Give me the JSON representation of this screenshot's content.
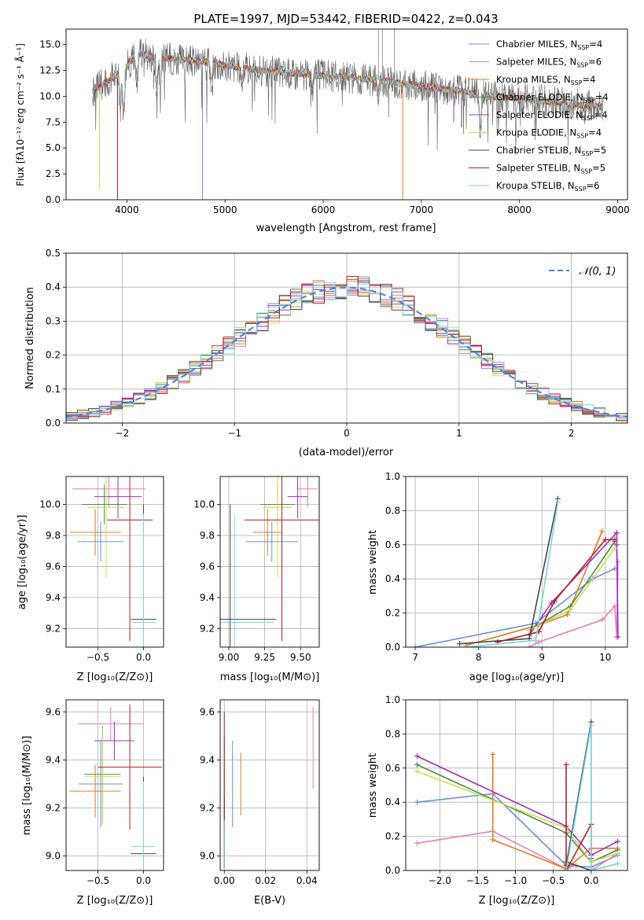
{
  "title": "PLATE=1997, MJD=53442, FIBERID=0422, z=0.043",
  "colors": [
    "#6a8fe0",
    "#e97fb5",
    "#e07b24",
    "#4f8a4f",
    "#a02cc4",
    "#c8e04a",
    "#4a4a4a",
    "#b51d1d",
    "#7dd3de"
  ],
  "legend_spectrum": [
    {
      "name": "Chabrier MILES, N",
      "sub": "SSP",
      "val": "=4"
    },
    {
      "name": "Salpeter MILES, N",
      "sub": "SSP",
      "val": "=6"
    },
    {
      "name": "Kroupa MILES, N",
      "sub": "SSP",
      "val": "=4"
    },
    {
      "name": "Chabrier ELODIE, N",
      "sub": "SSP",
      "val": "=4"
    },
    {
      "name": "Salpeter ELODIE, N",
      "sub": "SSP",
      "val": "=4"
    },
    {
      "name": "Kroupa ELODIE, N",
      "sub": "SSP",
      "val": "=4"
    },
    {
      "name": "Chabrier STELIB, N",
      "sub": "SSP",
      "val": "=5"
    },
    {
      "name": "Salpeter STELIB, N",
      "sub": "SSP",
      "val": "=5"
    },
    {
      "name": "Kroupa STELIB, N",
      "sub": "SSP",
      "val": "=6"
    }
  ],
  "legend_hist": "𝒩(0, 1)",
  "chart_data": [
    {
      "id": "spectrum",
      "type": "line",
      "xlabel": "wavelength [Angstrom, rest frame]",
      "ylabel": "Flux [fλ10⁻¹⁷ erg cm⁻² s⁻¹ Å⁻¹]",
      "xlim": [
        3380,
        9100
      ],
      "ylim": [
        0,
        16.5
      ],
      "xticks": [
        4000,
        5000,
        6000,
        7000,
        8000,
        9000
      ],
      "yticks": [
        0.0,
        2.5,
        5.0,
        7.5,
        10.0,
        12.5,
        15.0
      ],
      "grid": false,
      "legend_position": "upper right",
      "continuum": {
        "x": [
          3650,
          3800,
          3950,
          4100,
          4300,
          4500,
          4800,
          5000,
          5300,
          5600,
          6000,
          6300,
          6600,
          7000,
          7400,
          7700,
          8000,
          8300,
          8600,
          8850
        ],
        "y": [
          10.5,
          11.5,
          12.5,
          14.2,
          13.8,
          13.6,
          13.3,
          13.0,
          12.6,
          12.3,
          12.0,
          11.8,
          11.5,
          11.0,
          10.5,
          10.0,
          9.8,
          9.5,
          9.2,
          9.0
        ]
      },
      "absorption_features": [
        [
          3934,
          9.0
        ],
        [
          3969,
          8.5
        ],
        [
          4102,
          11.0
        ],
        [
          4304,
          10.5
        ],
        [
          4341,
          11.0
        ],
        [
          4861,
          11.5
        ],
        [
          5175,
          11.5
        ],
        [
          5890,
          11.0
        ],
        [
          6563,
          10.0
        ],
        [
          7600,
          7.0
        ],
        [
          8500,
          8.8
        ],
        [
          8542,
          8.5
        ],
        [
          8662,
          8.7
        ]
      ],
      "spikes": [
        [
          3720,
          1.0
        ],
        [
          3905,
          0.0
        ],
        [
          4770,
          0.0
        ],
        [
          6810,
          0.0
        ],
        [
          7330,
          7.5
        ],
        [
          7410,
          7.0
        ]
      ],
      "emission_spikes": [
        [
          6563,
          16.5
        ],
        [
          6603,
          16.5
        ],
        [
          6725,
          16.5
        ]
      ]
    },
    {
      "id": "residual-histogram",
      "type": "histogram",
      "xlabel": "(data-model)/error",
      "ylabel": "Normed distribution",
      "xlim": [
        -2.5,
        2.5
      ],
      "ylim": [
        0,
        0.5
      ],
      "xticks": [
        -2,
        -1,
        0,
        1,
        2
      ],
      "yticks": [
        0.0,
        0.1,
        0.2,
        0.3,
        0.4,
        0.5
      ],
      "grid": true,
      "legend_position": "upper right",
      "bin_width": 0.1,
      "x_start": -2.5
    },
    {
      "id": "age-vs-Z",
      "type": "errorbar",
      "xlabel": "Z [log₁₀(Z/Z⊙)]",
      "ylabel": "age  [log₁₀(age/yr)]",
      "xlim": [
        -0.85,
        0.22
      ],
      "ylim": [
        9.08,
        10.18
      ],
      "xticks": [
        -0.5,
        0.0
      ],
      "yticks": [
        9.2,
        9.4,
        9.6,
        9.8,
        10.0
      ],
      "grid": true,
      "points": [
        {
          "x": -0.47,
          "y": 9.76,
          "xerr": 0.25,
          "yerr": 0.13
        },
        {
          "x": -0.38,
          "y": 10.1,
          "xerr": 0.4,
          "yerr": 0.12
        },
        {
          "x": -0.53,
          "y": 9.82,
          "xerr": 0.28,
          "yerr": 0.15
        },
        {
          "x": -0.43,
          "y": 10.0,
          "xerr": 0.25,
          "yerr": 0.13
        },
        {
          "x": -0.28,
          "y": 10.05,
          "xerr": 0.26,
          "yerr": 0.14
        },
        {
          "x": -0.41,
          "y": 9.98,
          "xerr": 0.2,
          "yerr": 0.45
        },
        {
          "x": 0.0,
          "y": 9.26,
          "xerr": 0.14,
          "yerr": 0.74
        },
        {
          "x": -0.15,
          "y": 9.9,
          "xerr": 0.25,
          "yerr": 0.78
        },
        {
          "x": 0.0,
          "y": 9.24,
          "xerr": 0.13,
          "yerr": 0.7
        }
      ]
    },
    {
      "id": "age-vs-mass",
      "type": "errorbar",
      "xlabel": "mass [log₁₀(M/M⊙)]",
      "ylabel": "",
      "xlim": [
        8.94,
        9.63
      ],
      "ylim": [
        9.08,
        10.18
      ],
      "xticks": [
        9.0,
        9.25,
        9.5
      ],
      "yticks": [
        9.2,
        9.4,
        9.6,
        9.8,
        10.0
      ],
      "grid": true,
      "points": [
        {
          "x": 9.3,
          "y": 9.76,
          "xerr": 0.18,
          "yerr": 0.13
        },
        {
          "x": 9.55,
          "y": 10.1,
          "xerr": 0.07,
          "yerr": 0.12
        },
        {
          "x": 9.27,
          "y": 9.82,
          "xerr": 0.1,
          "yerr": 0.15
        },
        {
          "x": 9.34,
          "y": 10.0,
          "xerr": 0.12,
          "yerr": 0.13
        },
        {
          "x": 9.48,
          "y": 10.05,
          "xerr": 0.07,
          "yerr": 0.14
        },
        {
          "x": 9.34,
          "y": 9.98,
          "xerr": 0.1,
          "yerr": 0.45
        },
        {
          "x": 9.01,
          "y": 9.26,
          "xerr": 0.32,
          "yerr": 0.74
        },
        {
          "x": 9.37,
          "y": 9.9,
          "xerr": 0.26,
          "yerr": 0.78
        },
        {
          "x": 9.04,
          "y": 9.24,
          "xerr": 0.27,
          "yerr": 0.7
        }
      ]
    },
    {
      "id": "mass-weight-vs-age",
      "type": "line",
      "xlabel": "age  [log₁₀(age/yr)]",
      "ylabel": "mass weight",
      "xlim": [
        6.85,
        10.35
      ],
      "ylim": [
        0,
        1.0
      ],
      "xticks": [
        7,
        8,
        9,
        10
      ],
      "yticks": [
        0.0,
        0.2,
        0.4,
        0.6,
        0.8,
        1.0
      ],
      "grid": true,
      "series": [
        {
          "x": [
            7.0,
            8.9,
            9.8,
            10.15
          ],
          "y": [
            0.0,
            0.14,
            0.4,
            0.46
          ]
        },
        {
          "x": [
            8.8,
            8.95,
            9.95,
            10.15,
            10.18,
            10.2
          ],
          "y": [
            0.0,
            0.03,
            0.16,
            0.24,
            0.06,
            0.5
          ]
        },
        {
          "x": [
            7.8,
            8.95,
            9.4,
            9.95
          ],
          "y": [
            0.01,
            0.13,
            0.19,
            0.68
          ]
        },
        {
          "x": [
            8.8,
            9.45,
            10.15
          ],
          "y": [
            0.1,
            0.24,
            0.62
          ]
        },
        {
          "x": [
            8.8,
            9.15,
            10.18,
            10.2,
            10.18
          ],
          "y": [
            0.07,
            0.26,
            0.67,
            0.06,
            0.6
          ]
        },
        {
          "x": [
            8.8,
            9.45,
            10.15
          ],
          "y": [
            0.1,
            0.22,
            0.58
          ]
        },
        {
          "x": [
            7.7,
            8.8,
            9.25
          ],
          "y": [
            0.02,
            0.05,
            0.87
          ]
        },
        {
          "x": [
            8.3,
            8.95,
            9.2,
            10.0,
            10.15
          ],
          "y": [
            0.03,
            0.09,
            0.27,
            0.63,
            0.63
          ]
        },
        {
          "x": [
            7.8,
            8.9,
            9.25
          ],
          "y": [
            0.0,
            0.04,
            0.85
          ]
        }
      ]
    },
    {
      "id": "mass-vs-Z",
      "type": "errorbar",
      "xlabel": "Z [log₁₀(Z/Z⊙)]",
      "ylabel": "mass [log₁₀(M/M⊙)]",
      "xlim": [
        -0.85,
        0.22
      ],
      "ylim": [
        8.94,
        9.65
      ],
      "xticks": [
        -0.5,
        0.0
      ],
      "yticks": [
        9.0,
        9.2,
        9.4,
        9.6
      ],
      "grid": true,
      "points": [
        {
          "x": -0.47,
          "y": 9.3,
          "xerr": 0.24,
          "yerr": 0.18
        },
        {
          "x": -0.36,
          "y": 9.55,
          "xerr": 0.36,
          "yerr": 0.07
        },
        {
          "x": -0.53,
          "y": 9.27,
          "xerr": 0.28,
          "yerr": 0.11
        },
        {
          "x": -0.45,
          "y": 9.34,
          "xerr": 0.2,
          "yerr": 0.2
        },
        {
          "x": -0.32,
          "y": 9.48,
          "xerr": 0.22,
          "yerr": 0.08
        },
        {
          "x": -0.45,
          "y": 9.33,
          "xerr": 0.2,
          "yerr": 0.2
        },
        {
          "x": 0.0,
          "y": 9.01,
          "xerr": 0.14,
          "yerr": 0.32
        },
        {
          "x": -0.15,
          "y": 9.37,
          "xerr": 0.35,
          "yerr": 0.26
        },
        {
          "x": 0.0,
          "y": 9.04,
          "xerr": 0.13,
          "yerr": 0.27
        }
      ]
    },
    {
      "id": "mass-vs-ebv",
      "type": "errorbar",
      "xlabel": "E(B-V)",
      "ylabel": "",
      "xlim": [
        -0.002,
        0.046
      ],
      "ylim": [
        8.94,
        9.65
      ],
      "xticks": [
        0.0,
        0.02,
        0.04
      ],
      "yticks": [
        9.0,
        9.2,
        9.4,
        9.6
      ],
      "grid": true,
      "points": [
        {
          "x": 0.004,
          "y": 9.3,
          "xerr": 0,
          "yerr": 0.18
        },
        {
          "x": 0.043,
          "y": 9.45,
          "xerr": 0,
          "yerr": 0.17
        },
        {
          "x": 0.008,
          "y": 9.3,
          "xerr": 0,
          "yerr": 0.13
        },
        {
          "x": 0.0,
          "y": 9.2,
          "xerr": 0,
          "yerr": 0.25
        },
        {
          "x": 0.0,
          "y": 9.3,
          "xerr": 0,
          "yerr": 0.2
        },
        {
          "x": 0.0,
          "y": 9.25,
          "xerr": 0,
          "yerr": 0.2
        },
        {
          "x": 0.0,
          "y": 9.1,
          "xerr": 0,
          "yerr": 0.15
        },
        {
          "x": 0.0,
          "y": 9.3,
          "xerr": 0,
          "yerr": 0.3
        },
        {
          "x": 0.0,
          "y": 9.05,
          "xerr": 0,
          "yerr": 0.1
        }
      ]
    },
    {
      "id": "mass-weight-vs-Z",
      "type": "line",
      "xlabel": "Z [log₁₀(Z/Z⊙)]",
      "ylabel": "mass weight",
      "xlim": [
        -2.45,
        0.48
      ],
      "ylim": [
        0,
        1.0
      ],
      "xticks": [
        -2.0,
        -1.5,
        -1.0,
        -0.5,
        0.0
      ],
      "yticks": [
        0.0,
        0.2,
        0.4,
        0.6,
        0.8,
        1.0
      ],
      "grid": true,
      "series": [
        {
          "x": [
            -2.3,
            -1.3,
            -0.33,
            0.0,
            0.35
          ],
          "y": [
            0.4,
            0.45,
            0.03,
            0.02,
            0.09
          ]
        },
        {
          "x": [
            -2.3,
            -1.3,
            -0.33,
            -0.2,
            0.0,
            0.35
          ],
          "y": [
            0.16,
            0.23,
            0.01,
            0.03,
            0.0,
            0.1
          ]
        },
        {
          "x": [
            -1.3,
            -1.3,
            -0.33,
            0.0,
            0.35
          ],
          "y": [
            0.68,
            0.18,
            0.01,
            0.13,
            0.13
          ]
        },
        {
          "x": [
            -2.3,
            -0.33,
            0.0,
            0.35
          ],
          "y": [
            0.62,
            0.22,
            0.05,
            0.12
          ]
        },
        {
          "x": [
            -2.3,
            -0.33,
            0.0,
            0.35
          ],
          "y": [
            0.67,
            0.26,
            0.09,
            0.17
          ]
        },
        {
          "x": [
            -2.3,
            -0.33,
            0.0,
            0.35
          ],
          "y": [
            0.58,
            0.25,
            0.05,
            0.1
          ]
        },
        {
          "x": [
            -0.33,
            0.0,
            0.0,
            -0.33
          ],
          "y": [
            0.03,
            0.87,
            0.0,
            0.05
          ]
        },
        {
          "x": [
            -0.33,
            -0.33,
            0.0,
            0.0
          ],
          "y": [
            0.62,
            0.0,
            0.27,
            0.07
          ]
        },
        {
          "x": [
            -0.33,
            0.0,
            0.0,
            0.35
          ],
          "y": [
            0.0,
            0.85,
            0.0,
            0.04
          ]
        }
      ]
    }
  ]
}
